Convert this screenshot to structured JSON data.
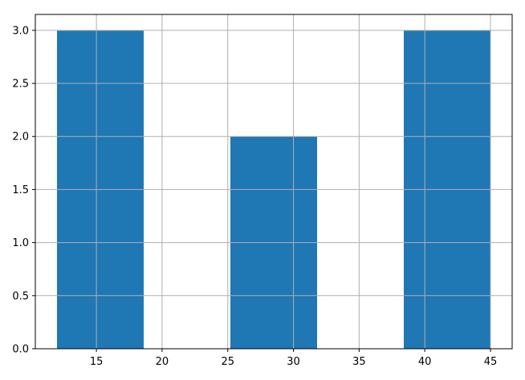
{
  "chart_data": {
    "type": "bar",
    "bins": [
      {
        "x0": 12.0,
        "x1": 18.6,
        "value": 3
      },
      {
        "x0": 18.6,
        "x1": 25.2,
        "value": 0
      },
      {
        "x0": 25.2,
        "x1": 31.8,
        "value": 2
      },
      {
        "x0": 31.8,
        "x1": 38.4,
        "value": 0
      },
      {
        "x0": 38.4,
        "x1": 45.0,
        "value": 3
      }
    ],
    "title": "",
    "xlabel": "",
    "ylabel": "",
    "xlim": [
      10.35,
      46.65
    ],
    "ylim": [
      0,
      3.15
    ],
    "xticks": [
      15,
      20,
      25,
      30,
      35,
      40,
      45
    ],
    "yticks": [
      0.0,
      0.5,
      1.0,
      1.5,
      2.0,
      2.5,
      3.0
    ],
    "xtick_labels": [
      "15",
      "20",
      "25",
      "30",
      "35",
      "40",
      "45"
    ],
    "ytick_labels": [
      "0.0",
      "0.5",
      "1.0",
      "1.5",
      "2.0",
      "2.5",
      "3.0"
    ],
    "grid": true,
    "bar_color": "#1f77b4",
    "grid_color": "#b0b0b0"
  }
}
